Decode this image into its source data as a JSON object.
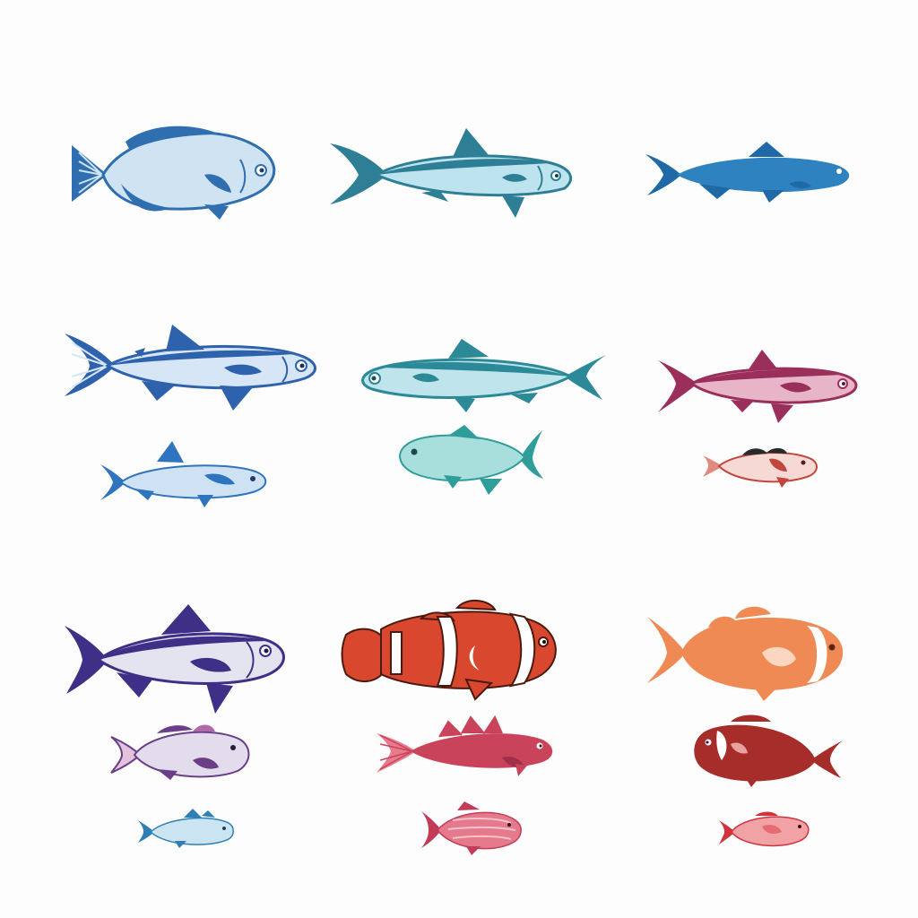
{
  "sheet": {
    "background": "#fdfdfd"
  },
  "fish": [
    {
      "id": "fish-r1-c1",
      "icon": "bream-icon",
      "body": "#cfe3f3",
      "accent": "#2f6fb0",
      "facing": "right"
    },
    {
      "id": "fish-r1-c2",
      "icon": "mackerel-icon",
      "body": "#bde3ee",
      "accent": "#2e7f95",
      "facing": "right"
    },
    {
      "id": "fish-r1-c3",
      "icon": "herring-icon",
      "body": "#2f82c0",
      "accent": "#1f6aa6",
      "facing": "right"
    },
    {
      "id": "fish-r2-c1",
      "icon": "salmon-icon",
      "body": "#d6e6f6",
      "accent": "#2f62ad",
      "facing": "right"
    },
    {
      "id": "fish-r2-c2",
      "icon": "trout-icon",
      "body": "#bfe4ec",
      "accent": "#2c8a98",
      "facing": "left"
    },
    {
      "id": "fish-r2-c3",
      "icon": "snapper-icon",
      "body": "#e8b4c8",
      "accent": "#9a2f5c",
      "facing": "right"
    },
    {
      "id": "fish-r2b-c1",
      "icon": "sardine-icon",
      "body": "#cfe2f4",
      "accent": "#2f74bf",
      "facing": "right"
    },
    {
      "id": "fish-r2b-c2",
      "icon": "tilapia-icon",
      "body": "#a8dfdc",
      "accent": "#2f9d9a",
      "facing": "left"
    },
    {
      "id": "fish-r2b-c3",
      "icon": "goby-icon",
      "body": "#f6d9d4",
      "accent": "#c0463e",
      "facing": "right"
    },
    {
      "id": "fish-r3-c1",
      "icon": "tuna-icon",
      "body": "#e4e3f0",
      "accent": "#3f2f86",
      "facing": "right"
    },
    {
      "id": "fish-r3-c2",
      "icon": "clownfish-icon",
      "body": "#d9482e",
      "accent": "#ffffff",
      "facing": "right"
    },
    {
      "id": "fish-r3-c3",
      "icon": "orange-clownfish-icon",
      "body": "#f08a55",
      "accent": "#ffffff",
      "facing": "right"
    },
    {
      "id": "fish-r3b-c1",
      "icon": "grouper-icon",
      "body": "#e3dcec",
      "accent": "#6a3f87",
      "facing": "right"
    },
    {
      "id": "fish-r3b-c2",
      "icon": "rockfish-icon",
      "body": "#c9445a",
      "accent": "#e77a8c",
      "facing": "right"
    },
    {
      "id": "fish-r3b-c3",
      "icon": "red-grouper-icon",
      "body": "#a72d2b",
      "accent": "#ffffff",
      "facing": "left"
    },
    {
      "id": "fish-r3c-c1",
      "icon": "small-blue-fish-icon",
      "body": "#cbe4f2",
      "accent": "#2f7fb5",
      "facing": "right"
    },
    {
      "id": "fish-r3c-c2",
      "icon": "striped-fish-icon",
      "body": "#e47a8c",
      "accent": "#c23b57",
      "facing": "right"
    },
    {
      "id": "fish-r3c-c3",
      "icon": "small-red-fish-icon",
      "body": "#f0a2a4",
      "accent": "#d1333e",
      "facing": "right"
    }
  ]
}
